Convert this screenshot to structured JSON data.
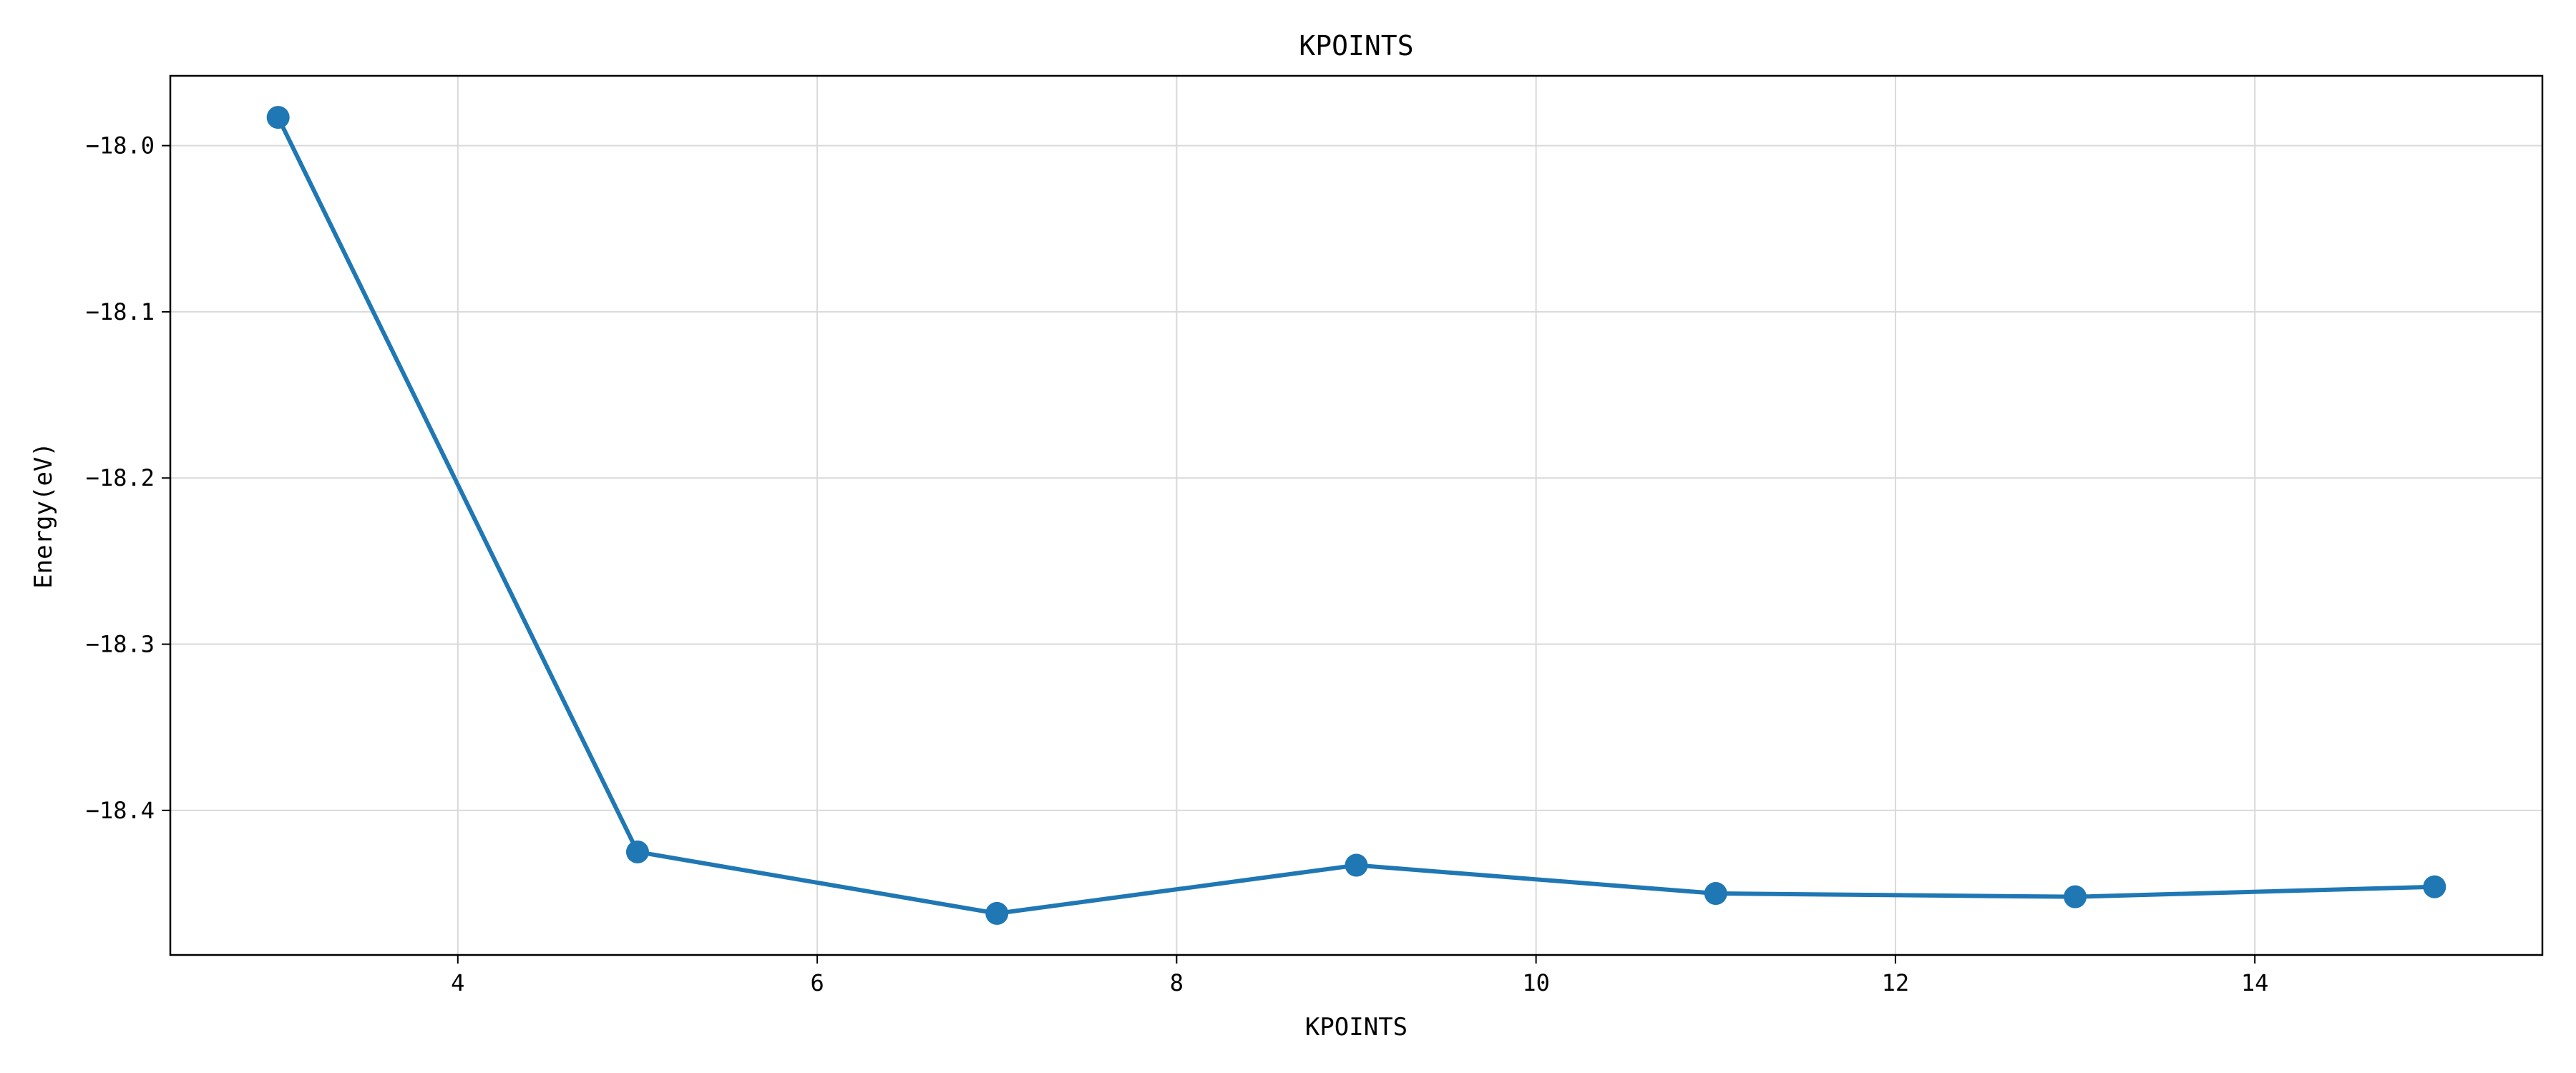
{
  "chart_data": {
    "type": "line",
    "title": "KPOINTS",
    "xlabel": "KPOINTS",
    "ylabel": "Energy(eV)",
    "x": [
      3,
      5,
      7,
      9,
      11,
      13,
      15
    ],
    "series": [
      {
        "values": [
          -17.983,
          -18.425,
          -18.462,
          -18.433,
          -18.45,
          -18.452,
          -18.446
        ],
        "color": "#1f77b4"
      }
    ],
    "xlim": [
      2.4,
      15.6
    ],
    "ylim": [
      -18.487,
      -17.958
    ],
    "xticks": [
      4,
      6,
      8,
      10,
      12,
      14
    ],
    "xtick_labels": [
      "4",
      "6",
      "8",
      "10",
      "12",
      "14"
    ],
    "yticks": [
      -18.0,
      -18.1,
      -18.2,
      -18.3,
      -18.4
    ],
    "ytick_labels": [
      "−18.0",
      "−18.1",
      "−18.2",
      "−18.3",
      "−18.4"
    ],
    "grid": true,
    "markers": "circle",
    "legend": "none"
  }
}
